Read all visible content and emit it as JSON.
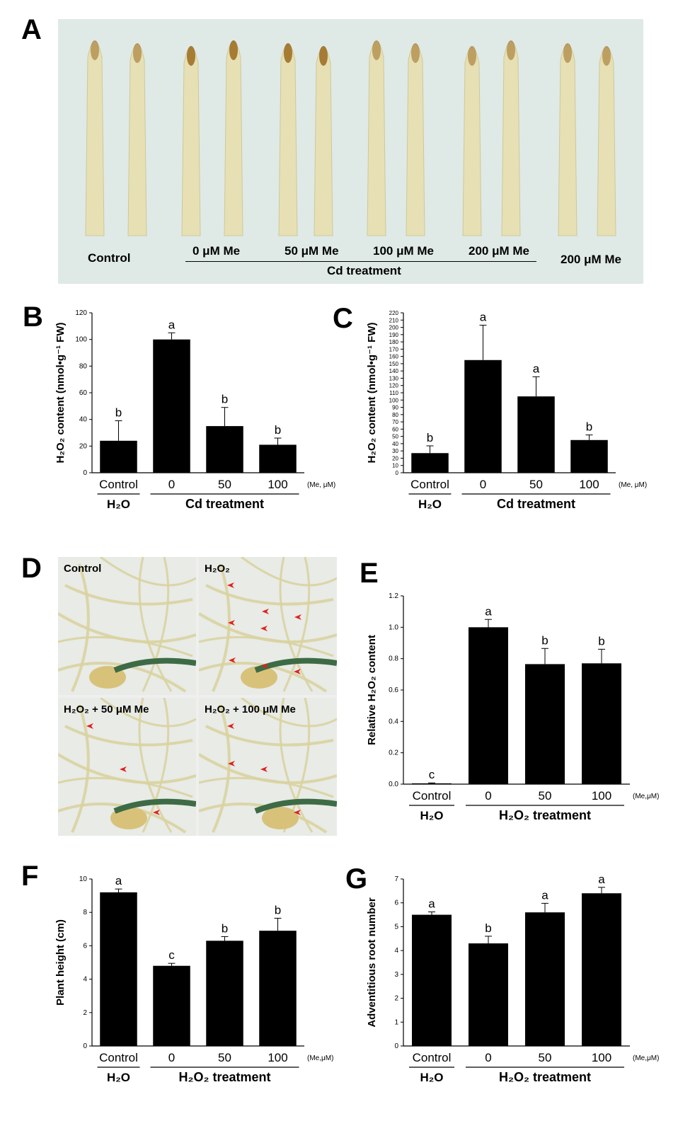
{
  "panel_labels": {
    "a": "A",
    "b": "B",
    "c": "C",
    "d": "D",
    "e": "E",
    "f": "F",
    "g": "G"
  },
  "panel_a": {
    "labels": [
      "Control",
      "0 μM Me",
      "50 μM Me",
      "100 μM Me",
      "200 μM Me",
      "200 μM Me"
    ],
    "group": "Cd treatment"
  },
  "panel_d": {
    "quadrants": [
      "Control",
      "H₂O₂",
      "H₂O₂ + 50 μM Me",
      "H₂O₂ + 100 μM Me"
    ]
  },
  "colors": {
    "bar": "#000000",
    "photo_a": "#dfeae6",
    "root": "#e6e0b4",
    "tip": "#9a6a1e",
    "arrow": "#e02020"
  },
  "chart_data": [
    {
      "panel": "B",
      "type": "bar",
      "categories": [
        "Control",
        "0",
        "50",
        "100"
      ],
      "values": [
        24,
        100,
        35,
        21
      ],
      "errors": [
        15,
        5,
        14,
        5
      ],
      "letters": [
        "b",
        "a",
        "b",
        "b"
      ],
      "ylabel": "H₂O₂ content (nmol•g⁻¹ FW)",
      "ylim": [
        0,
        120
      ],
      "yticks": [
        0,
        20,
        40,
        60,
        80,
        100,
        120
      ],
      "unit": "(Me, μM)",
      "group_left": "H₂O",
      "group_right": "Cd treatment"
    },
    {
      "panel": "C",
      "type": "bar",
      "categories": [
        "Control",
        "0",
        "50",
        "100"
      ],
      "values": [
        27,
        155,
        105,
        45
      ],
      "errors": [
        10,
        48,
        27,
        7
      ],
      "letters": [
        "b",
        "a",
        "a",
        "b"
      ],
      "ylabel": "H₂O₂ content (nmol•g⁻¹ FW)",
      "ylim": [
        0,
        220
      ],
      "yticks": [
        0,
        10,
        20,
        30,
        40,
        50,
        60,
        70,
        80,
        90,
        100,
        110,
        120,
        130,
        140,
        150,
        160,
        170,
        180,
        190,
        200,
        210,
        220
      ],
      "unit": "(Me, μM)",
      "group_left": "H₂O",
      "group_right": "Cd treatment"
    },
    {
      "panel": "E",
      "type": "bar",
      "categories": [
        "Control",
        "0",
        "50",
        "100"
      ],
      "values": [
        0.005,
        1.0,
        0.765,
        0.77
      ],
      "errors": [
        0.003,
        0.05,
        0.1,
        0.09
      ],
      "letters": [
        "c",
        "a",
        "b",
        "b"
      ],
      "ylabel": "Relative H₂O₂ content",
      "ylim": [
        0,
        1.2
      ],
      "yticks": [
        0.0,
        0.2,
        0.4,
        0.6,
        0.8,
        1.0,
        1.2
      ],
      "unit": "(Me,μM)",
      "group_left": "H₂O",
      "group_right": "H₂O₂ treatment"
    },
    {
      "panel": "F",
      "type": "bar",
      "categories": [
        "Control",
        "0",
        "50",
        "100"
      ],
      "values": [
        9.2,
        4.8,
        6.3,
        6.9
      ],
      "errors": [
        0.2,
        0.15,
        0.25,
        0.75
      ],
      "letters": [
        "a",
        "c",
        "b",
        "b"
      ],
      "ylabel": "Plant height (cm)",
      "ylim": [
        0,
        10
      ],
      "yticks": [
        0,
        2,
        4,
        6,
        8,
        10
      ],
      "unit": "(Me,μM)",
      "group_left": "H₂O",
      "group_right": "H₂O₂ treatment"
    },
    {
      "panel": "G",
      "type": "bar",
      "categories": [
        "Control",
        "0",
        "50",
        "100"
      ],
      "values": [
        5.5,
        4.3,
        5.6,
        6.4
      ],
      "errors": [
        0.12,
        0.3,
        0.38,
        0.25
      ],
      "letters": [
        "a",
        "b",
        "a",
        "a"
      ],
      "ylabel": "Adventitious root number",
      "ylim": [
        0,
        7
      ],
      "yticks": [
        0,
        1,
        2,
        3,
        4,
        5,
        6,
        7
      ],
      "unit": "(Me,μM)",
      "group_left": "H₂O",
      "group_right": "H₂O₂ treatment"
    }
  ]
}
